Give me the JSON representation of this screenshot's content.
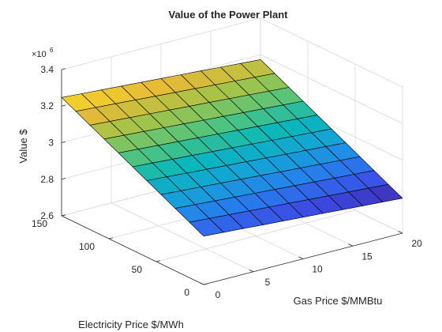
{
  "chart_data": {
    "type": "surface",
    "title": "Value of the Power Plant",
    "xlabel": "Gas Price $/MMBtu",
    "ylabel": "Electricity Price $/MWh",
    "zlabel": "Value $",
    "z_multiplier": "×10",
    "z_exponent": "6",
    "xlim": [
      0,
      20
    ],
    "ylim": [
      0,
      150
    ],
    "zlim": [
      2.6,
      3.4
    ],
    "x_ticks": [
      "0",
      "5",
      "10",
      "15",
      "20"
    ],
    "y_ticks": [
      "0",
      "50",
      "100",
      "150"
    ],
    "z_ticks": [
      "2.6",
      "2.8",
      "3",
      "3.2",
      "3.4"
    ],
    "x": [
      0,
      2,
      4,
      6,
      8,
      10,
      12,
      14,
      16,
      18,
      20
    ],
    "y": [
      0,
      15,
      30,
      45,
      60,
      75,
      90,
      105,
      120,
      135,
      150
    ],
    "z_formula": "z = 2.865 + 0.00255*y - 0.0037*x (in units of 10^6)",
    "z_corners": {
      "x0_y0": 2.865,
      "x20_y0": 2.79,
      "x0_y150": 3.25,
      "x20_y150": 3.18
    },
    "colormap": "parula",
    "grid": true
  }
}
